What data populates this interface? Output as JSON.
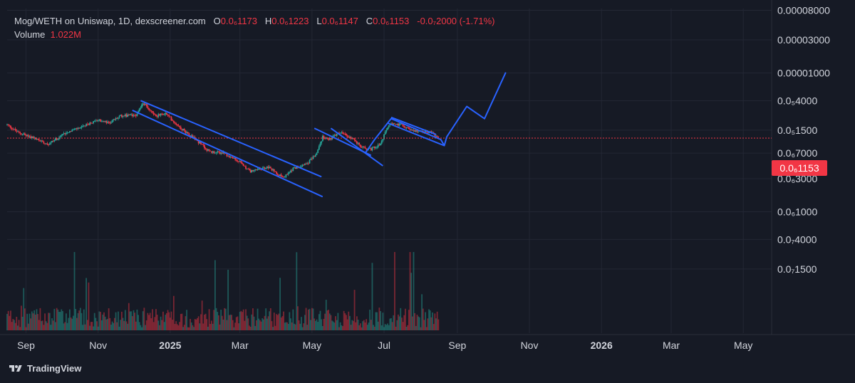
{
  "legend": {
    "pair": "Mog/WETH on Uniswap, 1D, dexscreener.com",
    "o_label": "O",
    "o_value": "0.0₆1173",
    "h_label": "H",
    "h_value": "0.0₆1223",
    "l_label": "L",
    "l_value": "0.0₆1147",
    "c_label": "C",
    "c_value": "0.0₆1153",
    "change": "-0.0₇2000 (-1.71%)",
    "volume_label": "Volume",
    "volume_value": "1.022M"
  },
  "current_price_tag": "0.0₆1153",
  "brand": "TradingView",
  "colors": {
    "background": "#161a25",
    "up": "#26a69a",
    "down": "#f23645",
    "drawing": "#2962ff",
    "price_line": "#f23645"
  },
  "chart_data": {
    "type": "candlestick",
    "series_name": "Mog/WETH",
    "scale": "log",
    "x_range": [
      "2024-08-16",
      "2026-05-25"
    ],
    "ylim": [
      1.5e-08,
      8e-05
    ],
    "x_ticks": [
      {
        "date": "2024-09-01",
        "label": "Sep",
        "bold": false
      },
      {
        "date": "2024-11-01",
        "label": "Nov",
        "bold": false
      },
      {
        "date": "2025-01-01",
        "label": "2025",
        "bold": true
      },
      {
        "date": "2025-03-01",
        "label": "Mar",
        "bold": false
      },
      {
        "date": "2025-05-01",
        "label": "May",
        "bold": false
      },
      {
        "date": "2025-07-01",
        "label": "Jul",
        "bold": false
      },
      {
        "date": "2025-09-01",
        "label": "Sep",
        "bold": false
      },
      {
        "date": "2025-11-01",
        "label": "Nov",
        "bold": false
      },
      {
        "date": "2026-01-01",
        "label": "2026",
        "bold": true
      },
      {
        "date": "2026-03-01",
        "label": "Mar",
        "bold": false
      },
      {
        "date": "2026-05-01",
        "label": "May",
        "bold": false
      }
    ],
    "y_ticks": [
      {
        "value": 8e-05,
        "label": "0.00008000"
      },
      {
        "value": 3e-05,
        "label": "0.00003000"
      },
      {
        "value": 1e-05,
        "label": "0.00001000"
      },
      {
        "value": 4e-06,
        "label": "0.0₅4000"
      },
      {
        "value": 1.5e-06,
        "label": "0.0₅1500"
      },
      {
        "value": 7e-07,
        "label": "0.0₆7000"
      },
      {
        "value": 3e-07,
        "label": "0.0₆3000"
      },
      {
        "value": 1e-07,
        "label": "0.0₆1000"
      },
      {
        "value": 4e-08,
        "label": "0.0₇4000"
      },
      {
        "value": 1.5e-08,
        "label": "0.0₇1500"
      }
    ],
    "last_close": 1.1531e-06,
    "price_path": [
      [
        "2024-08-16",
        1.8e-06
      ],
      [
        "2024-08-25",
        1.4e-06
      ],
      [
        "2024-09-05",
        1.2e-06
      ],
      [
        "2024-09-20",
        9.5e-07
      ],
      [
        "2024-10-05",
        1.4e-06
      ],
      [
        "2024-10-20",
        1.7e-06
      ],
      [
        "2024-11-01",
        2.1e-06
      ],
      [
        "2024-11-10",
        1.9e-06
      ],
      [
        "2024-11-20",
        2.4e-06
      ],
      [
        "2024-12-03",
        2.5e-06
      ],
      [
        "2024-12-09",
        3.7e-06
      ],
      [
        "2024-12-20",
        2.4e-06
      ],
      [
        "2024-12-28",
        2.6e-06
      ],
      [
        "2025-01-10",
        1.6e-06
      ],
      [
        "2025-01-20",
        1.2e-06
      ],
      [
        "2025-02-03",
        7.4e-07
      ],
      [
        "2025-02-15",
        7e-07
      ],
      [
        "2025-03-01",
        5.2e-07
      ],
      [
        "2025-03-10",
        3.8e-07
      ],
      [
        "2025-03-25",
        4.4e-07
      ],
      [
        "2025-04-07",
        3.1e-07
      ],
      [
        "2025-04-15",
        4.2e-07
      ],
      [
        "2025-04-28",
        5.2e-07
      ],
      [
        "2025-05-05",
        7e-07
      ],
      [
        "2025-05-10",
        1.2e-06
      ],
      [
        "2025-05-15",
        1.1e-06
      ],
      [
        "2025-05-25",
        1.4e-06
      ],
      [
        "2025-06-05",
        1.1e-06
      ],
      [
        "2025-06-12",
        8.5e-07
      ],
      [
        "2025-06-20",
        8e-07
      ],
      [
        "2025-06-28",
        9.5e-07
      ],
      [
        "2025-07-05",
        1.8e-06
      ],
      [
        "2025-07-15",
        1.8e-06
      ],
      [
        "2025-07-25",
        1.5e-06
      ],
      [
        "2025-08-10",
        1.4e-06
      ],
      [
        "2025-08-16",
        1.1531e-06
      ]
    ],
    "volume": {
      "last_value": "1.022M",
      "approx_max": 10000000.0
    },
    "drawings": [
      {
        "type": "channel",
        "color": "#2962ff",
        "upper": [
          [
            "2024-12-07",
            4e-06
          ],
          [
            "2025-05-09",
            3.2e-07
          ]
        ],
        "lower": [
          [
            "2024-11-30",
            2.9e-06
          ],
          [
            "2025-05-10",
            1.65e-07
          ]
        ]
      },
      {
        "type": "channel",
        "color": "#2962ff",
        "upper": [
          [
            "2025-05-03",
            1.6e-06
          ],
          [
            "2025-06-20",
            6.5e-07
          ]
        ],
        "lower": [
          [
            "2025-05-17",
            1.6e-06
          ],
          [
            "2025-06-30",
            4.6e-07
          ]
        ]
      },
      {
        "type": "channel",
        "color": "#2962ff",
        "upper": [
          [
            "2025-07-07",
            2.3e-06
          ],
          [
            "2025-08-14",
            1.3e-06
          ]
        ],
        "lower": [
          [
            "2025-07-04",
            1.9e-06
          ],
          [
            "2025-08-21",
            9e-07
          ]
        ]
      },
      {
        "type": "projection",
        "color": "#2962ff",
        "points": [
          [
            "2025-06-15",
            7e-07
          ],
          [
            "2025-06-23",
            1.1e-06
          ],
          [
            "2025-07-07",
            2.2e-06
          ],
          [
            "2025-08-18",
            1.1e-06
          ],
          [
            "2025-08-21",
            9e-07
          ],
          [
            "2025-08-23",
            1.2e-06
          ],
          [
            "2025-09-09",
            3.3e-06
          ],
          [
            "2025-09-24",
            2.2e-06
          ],
          [
            "2025-10-12",
            1.02e-05
          ]
        ]
      }
    ]
  }
}
